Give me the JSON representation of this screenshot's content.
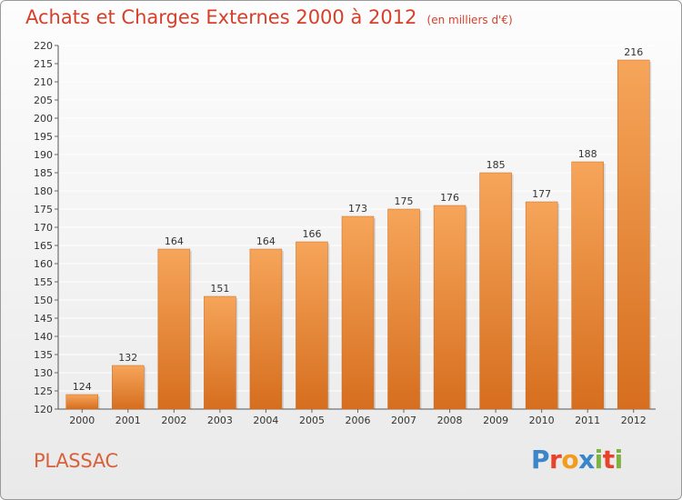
{
  "title": "Achats et Charges Externes 2000 à 2012",
  "unit": "(en milliers d'€)",
  "commune": "PLASSAC",
  "logo": {
    "text": "Proxiti",
    "letter_colors": [
      "#3a86c8",
      "#e8422b",
      "#f29b1d",
      "#3a86c8",
      "#7cb342",
      "#e8422b",
      "#7cb342"
    ]
  },
  "colors": {
    "bar_top": "#f6a55a",
    "bar_bottom": "#d66e1e",
    "title": "#d6402a",
    "grid": "#ffffff"
  },
  "chart_data": {
    "type": "bar",
    "title": "Achats et Charges Externes 2000 à 2012",
    "subtitle": "(en milliers d'€)",
    "categories": [
      "2000",
      "2001",
      "2002",
      "2003",
      "2004",
      "2005",
      "2006",
      "2007",
      "2008",
      "2009",
      "2010",
      "2011",
      "2012"
    ],
    "values": [
      124,
      132,
      164,
      151,
      164,
      166,
      173,
      175,
      176,
      185,
      177,
      188,
      216
    ],
    "ylim": [
      120,
      220
    ],
    "yticks": [
      120,
      125,
      130,
      135,
      140,
      145,
      150,
      155,
      160,
      165,
      170,
      175,
      180,
      185,
      190,
      195,
      200,
      205,
      210,
      215,
      220
    ],
    "grid": true,
    "data_labels": true
  }
}
